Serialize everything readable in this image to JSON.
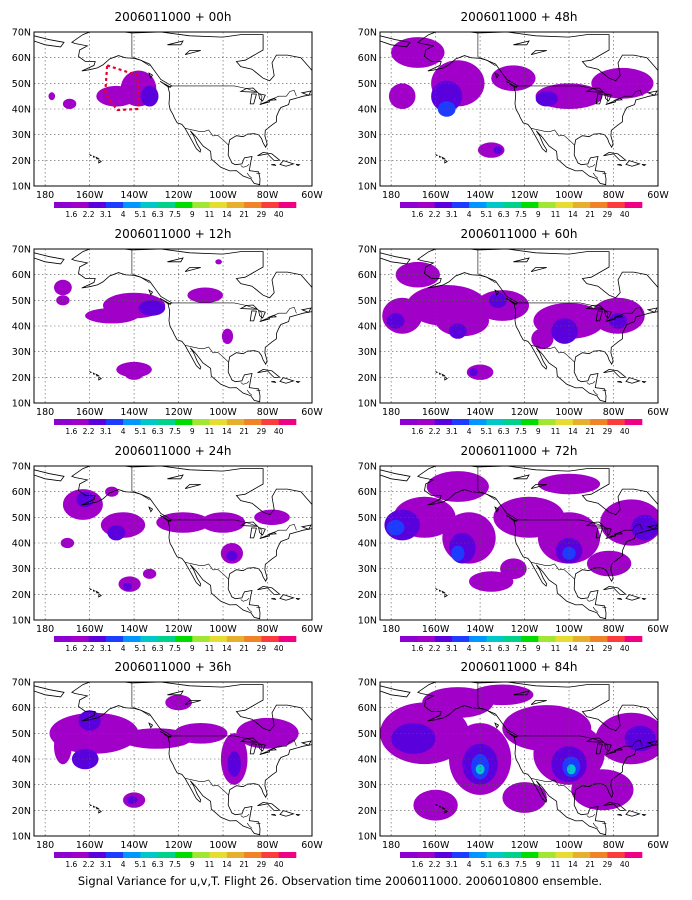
{
  "caption": "Signal Variance for u,v,T. Flight 26. Observation time 2006011000. 2006010800 ensemble.",
  "lon_ticks": [
    "180",
    "160W",
    "140W",
    "120W",
    "100W",
    "80W",
    "60W"
  ],
  "lat_ticks": [
    "70N",
    "60N",
    "50N",
    "40N",
    "30N",
    "20N",
    "10N"
  ],
  "colorbar": {
    "labels": [
      "1.6",
      "2.2",
      "3.1",
      "4",
      "5.1",
      "6.3",
      "7.5",
      "9",
      "11",
      "14",
      "21",
      "29",
      "40"
    ],
    "colors": [
      "#8c00d2",
      "#a000c8",
      "#5a00dc",
      "#1e3cff",
      "#0096ff",
      "#00c8c8",
      "#00d28c",
      "#00dc00",
      "#a0e632",
      "#e6dc32",
      "#e6af2d",
      "#f08228",
      "#fa3c3c",
      "#f00082"
    ]
  },
  "panels": [
    {
      "id": "p00",
      "title": "2006011000 + 00h",
      "col": 0,
      "row": 0,
      "box": true,
      "blobs": [
        [
          -148,
          45,
          9,
          4,
          1
        ],
        [
          -138,
          48,
          8,
          7,
          1
        ],
        [
          -133,
          45,
          4,
          4,
          2
        ],
        [
          -169,
          42,
          3,
          2,
          1
        ],
        [
          -177,
          45,
          1.5,
          1.5,
          1
        ]
      ]
    },
    {
      "id": "p48",
      "title": "2006011000 + 48h",
      "col": 1,
      "row": 0,
      "box": false,
      "blobs": [
        [
          -168,
          62,
          12,
          6,
          1
        ],
        [
          -150,
          50,
          12,
          9,
          1
        ],
        [
          -155,
          45,
          7,
          6,
          2
        ],
        [
          -155,
          40,
          4,
          3,
          3
        ],
        [
          -125,
          52,
          10,
          5,
          1
        ],
        [
          -100,
          45,
          15,
          5,
          1
        ],
        [
          -110,
          44,
          5,
          3,
          2
        ],
        [
          -76,
          50,
          14,
          6,
          1
        ],
        [
          -175,
          45,
          6,
          5,
          1
        ],
        [
          -135,
          24,
          6,
          3,
          1
        ],
        [
          -132,
          24,
          2,
          1.5,
          2
        ]
      ]
    },
    {
      "id": "p12",
      "title": "2006011000 + 12h",
      "col": 0,
      "row": 1,
      "box": false,
      "blobs": [
        [
          -140,
          48,
          14,
          5,
          1
        ],
        [
          -150,
          44,
          12,
          3,
          1
        ],
        [
          -132,
          47,
          6,
          3,
          2
        ],
        [
          -108,
          52,
          8,
          3,
          1
        ],
        [
          -172,
          55,
          4,
          3,
          1
        ],
        [
          -172,
          50,
          3,
          2,
          1
        ],
        [
          -98,
          36,
          2.5,
          3,
          1
        ],
        [
          -140,
          23,
          8,
          3,
          1
        ],
        [
          -140,
          21,
          4,
          2,
          1
        ],
        [
          -102,
          65,
          1.5,
          1,
          1
        ]
      ]
    },
    {
      "id": "p60",
      "title": "2006011000 + 60h",
      "col": 1,
      "row": 1,
      "box": false,
      "blobs": [
        [
          -155,
          48,
          18,
          8,
          1
        ],
        [
          -175,
          44,
          9,
          7,
          1
        ],
        [
          -178,
          42,
          4,
          3,
          2
        ],
        [
          -148,
          42,
          12,
          6,
          1
        ],
        [
          -150,
          38,
          4,
          3,
          2
        ],
        [
          -130,
          48,
          12,
          6,
          1
        ],
        [
          -132,
          50,
          4,
          3,
          2
        ],
        [
          -100,
          42,
          16,
          7,
          1
        ],
        [
          -102,
          38,
          6,
          5,
          2
        ],
        [
          -78,
          44,
          12,
          7,
          1
        ],
        [
          -78,
          42,
          4,
          3,
          2
        ],
        [
          -112,
          35,
          5,
          4,
          1
        ],
        [
          -140,
          22,
          6,
          3,
          1
        ],
        [
          -143,
          22,
          2,
          1.5,
          2
        ],
        [
          -168,
          60,
          10,
          5,
          1
        ]
      ]
    },
    {
      "id": "p24",
      "title": "2006011000 + 24h",
      "col": 0,
      "row": 2,
      "box": false,
      "blobs": [
        [
          -163,
          55,
          9,
          6,
          1
        ],
        [
          -162,
          57,
          4,
          3,
          2
        ],
        [
          -145,
          47,
          10,
          5,
          1
        ],
        [
          -148,
          44,
          4,
          3,
          2
        ],
        [
          -118,
          48,
          12,
          4,
          1
        ],
        [
          -100,
          48,
          10,
          4,
          1
        ],
        [
          -78,
          50,
          8,
          3,
          1
        ],
        [
          -96,
          36,
          5,
          4,
          1
        ],
        [
          -96,
          35,
          2.5,
          2,
          2
        ],
        [
          -142,
          24,
          5,
          3,
          1
        ],
        [
          -143,
          23,
          2,
          1.5,
          2
        ],
        [
          -133,
          28,
          3,
          2,
          1
        ],
        [
          -170,
          40,
          3,
          2,
          1
        ],
        [
          -150,
          60,
          3,
          2,
          1
        ]
      ]
    },
    {
      "id": "p72",
      "title": "2006011000 + 72h",
      "col": 1,
      "row": 2,
      "box": false,
      "blobs": [
        [
          -165,
          50,
          14,
          8,
          1
        ],
        [
          -175,
          47,
          8,
          6,
          2
        ],
        [
          -178,
          46,
          4,
          3,
          3
        ],
        [
          -145,
          42,
          12,
          10,
          1
        ],
        [
          -148,
          38,
          6,
          6,
          2
        ],
        [
          -150,
          36,
          3,
          3,
          3
        ],
        [
          -118,
          50,
          16,
          8,
          1
        ],
        [
          -100,
          42,
          14,
          10,
          1
        ],
        [
          -100,
          37,
          6,
          5,
          2
        ],
        [
          -100,
          36,
          3,
          2.5,
          3
        ],
        [
          -72,
          48,
          14,
          9,
          1
        ],
        [
          -66,
          46,
          6,
          5,
          2
        ],
        [
          -150,
          62,
          14,
          6,
          1
        ],
        [
          -100,
          63,
          14,
          4,
          1
        ],
        [
          -135,
          25,
          10,
          4,
          1
        ],
        [
          -125,
          30,
          6,
          4,
          1
        ],
        [
          -82,
          32,
          10,
          5,
          1
        ]
      ]
    },
    {
      "id": "p36",
      "title": "2006011000 + 36h",
      "col": 0,
      "row": 3,
      "box": false,
      "blobs": [
        [
          -158,
          50,
          20,
          8,
          1
        ],
        [
          -160,
          55,
          5,
          4,
          2
        ],
        [
          -162,
          40,
          6,
          4,
          2
        ],
        [
          -130,
          48,
          16,
          4,
          1
        ],
        [
          -110,
          50,
          12,
          4,
          1
        ],
        [
          -95,
          40,
          6,
          10,
          1
        ],
        [
          -95,
          38,
          3,
          5,
          2
        ],
        [
          -80,
          50,
          14,
          6,
          1
        ],
        [
          -120,
          62,
          6,
          3,
          1
        ],
        [
          -140,
          24,
          5,
          3,
          1
        ],
        [
          -141,
          24,
          2.5,
          1.5,
          2
        ],
        [
          -172,
          45,
          4,
          7,
          1
        ]
      ]
    },
    {
      "id": "p84",
      "title": "2006011000 + 84h",
      "col": 1,
      "row": 3,
      "box": false,
      "blobs": [
        [
          -165,
          50,
          20,
          12,
          1
        ],
        [
          -170,
          48,
          10,
          6,
          2
        ],
        [
          -140,
          40,
          14,
          14,
          1
        ],
        [
          -140,
          38,
          8,
          8,
          2
        ],
        [
          -140,
          37,
          4,
          5,
          3
        ],
        [
          -140,
          36,
          2,
          2,
          5
        ],
        [
          -110,
          52,
          20,
          9,
          1
        ],
        [
          -100,
          42,
          16,
          12,
          1
        ],
        [
          -100,
          38,
          8,
          7,
          2
        ],
        [
          -99,
          37,
          4,
          4,
          3
        ],
        [
          -99,
          36,
          2,
          2,
          5
        ],
        [
          -72,
          48,
          16,
          10,
          1
        ],
        [
          -68,
          48,
          7,
          5,
          2
        ],
        [
          -150,
          62,
          16,
          6,
          1
        ],
        [
          -85,
          28,
          14,
          8,
          1
        ],
        [
          -120,
          25,
          10,
          6,
          1
        ],
        [
          -160,
          22,
          10,
          6,
          1
        ],
        [
          -130,
          65,
          14,
          4,
          1
        ]
      ]
    }
  ]
}
